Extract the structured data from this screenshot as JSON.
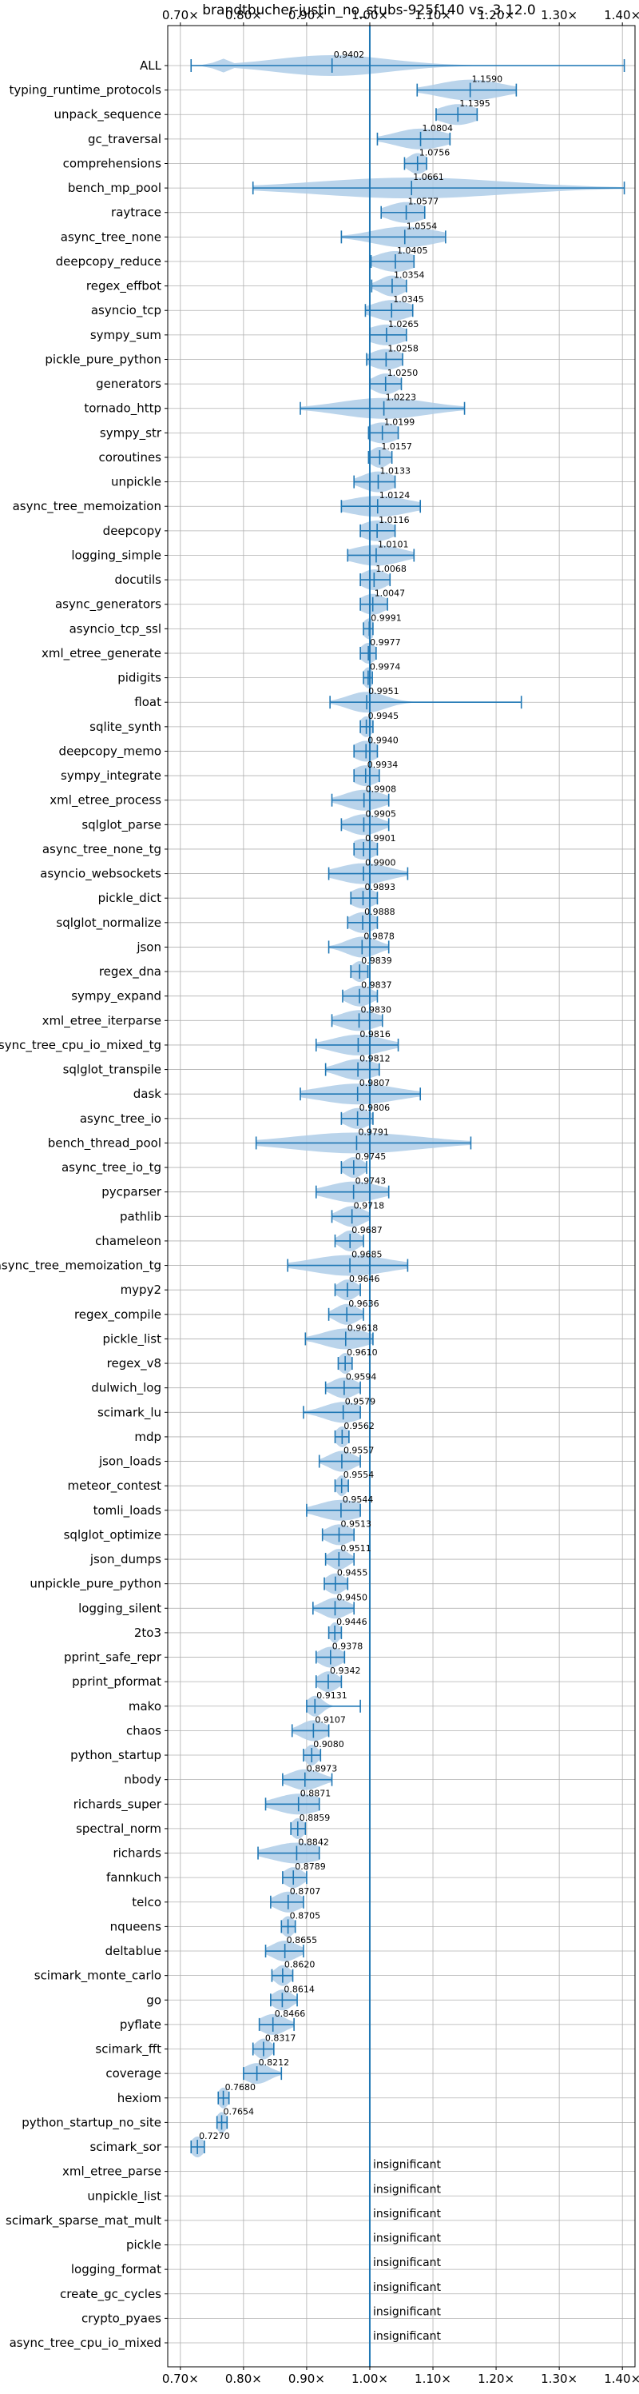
{
  "chart_data": {
    "type": "violin",
    "title": "brandtbucher-justin_no_stubs-925f140 vs. 3.12.0",
    "xlim": [
      0.68,
      1.42
    ],
    "x_ticks": [
      0.7,
      0.8,
      0.9,
      1.0,
      1.1,
      1.2,
      1.3,
      1.4
    ],
    "x_tick_labels": [
      "0.70×",
      "0.80×",
      "0.90×",
      "1.00×",
      "1.10×",
      "1.20×",
      "1.30×",
      "1.40×"
    ],
    "reference_line": 1.0,
    "grid": true,
    "color": "#1f77b4",
    "violin_color": "#aecde8",
    "items": [
      {
        "name": "ALL",
        "label": "0.9402",
        "median": 0.9402,
        "min": 0.717,
        "max": 1.403,
        "spread": 0.09,
        "q": [
          0.9,
          1.03
        ]
      },
      {
        "name": "typing_runtime_protocols",
        "label": "1.1590",
        "median": 1.159,
        "min": 1.075,
        "max": 1.232,
        "spread": 0.05
      },
      {
        "name": "unpack_sequence",
        "label": "1.1395",
        "median": 1.1395,
        "min": 1.105,
        "max": 1.17,
        "spread": 0.03
      },
      {
        "name": "gc_traversal",
        "label": "1.0804",
        "median": 1.0804,
        "min": 1.012,
        "max": 1.127,
        "spread": 0.04
      },
      {
        "name": "comprehensions",
        "label": "1.0756",
        "median": 1.0756,
        "min": 1.055,
        "max": 1.09,
        "spread": 0.015
      },
      {
        "name": "bench_mp_pool",
        "label": "1.0661",
        "median": 1.0661,
        "min": 0.815,
        "max": 1.403,
        "spread": 0.15
      },
      {
        "name": "raytrace",
        "label": "1.0577",
        "median": 1.0577,
        "min": 1.018,
        "max": 1.087,
        "spread": 0.03
      },
      {
        "name": "async_tree_none",
        "label": "1.0554",
        "median": 1.0554,
        "min": 0.955,
        "max": 1.12,
        "spread": 0.05
      },
      {
        "name": "deepcopy_reduce",
        "label": "1.0405",
        "median": 1.0405,
        "min": 1.002,
        "max": 1.07,
        "spread": 0.03
      },
      {
        "name": "regex_effbot",
        "label": "1.0354",
        "median": 1.0354,
        "min": 1.003,
        "max": 1.058,
        "spread": 0.02
      },
      {
        "name": "asyncio_tcp",
        "label": "1.0345",
        "median": 1.0345,
        "min": 0.993,
        "max": 1.068,
        "spread": 0.03
      },
      {
        "name": "sympy_sum",
        "label": "1.0265",
        "median": 1.0265,
        "min": 1.0,
        "max": 1.058,
        "spread": 0.03
      },
      {
        "name": "pickle_pure_python",
        "label": "1.0258",
        "median": 1.0258,
        "min": 0.995,
        "max": 1.052,
        "spread": 0.025
      },
      {
        "name": "generators",
        "label": "1.0250",
        "median": 1.025,
        "min": 1.0,
        "max": 1.05,
        "spread": 0.02
      },
      {
        "name": "tornado_http",
        "label": "1.0223",
        "median": 1.0223,
        "min": 0.89,
        "max": 1.15,
        "spread": 0.07
      },
      {
        "name": "sympy_str",
        "label": "1.0199",
        "median": 1.0199,
        "min": 0.998,
        "max": 1.045,
        "spread": 0.025
      },
      {
        "name": "coroutines",
        "label": "1.0157",
        "median": 1.0157,
        "min": 0.998,
        "max": 1.035,
        "spread": 0.015
      },
      {
        "name": "unpickle",
        "label": "1.0133",
        "median": 1.0133,
        "min": 0.975,
        "max": 1.04,
        "spread": 0.025
      },
      {
        "name": "async_tree_memoization",
        "label": "1.0124",
        "median": 1.0124,
        "min": 0.955,
        "max": 1.08,
        "spread": 0.05
      },
      {
        "name": "deepcopy",
        "label": "1.0116",
        "median": 1.0116,
        "min": 0.985,
        "max": 1.04,
        "spread": 0.025
      },
      {
        "name": "logging_simple",
        "label": "1.0101",
        "median": 1.0101,
        "min": 0.965,
        "max": 1.07,
        "spread": 0.04
      },
      {
        "name": "docutils",
        "label": "1.0068",
        "median": 1.0068,
        "min": 0.985,
        "max": 1.032,
        "spread": 0.02
      },
      {
        "name": "async_generators",
        "label": "1.0047",
        "median": 1.0047,
        "min": 0.985,
        "max": 1.028,
        "spread": 0.02
      },
      {
        "name": "asyncio_tcp_ssl",
        "label": "0.9991",
        "median": 0.9991,
        "min": 0.99,
        "max": 1.005,
        "spread": 0.01
      },
      {
        "name": "xml_etree_generate",
        "label": "0.9977",
        "median": 0.9977,
        "min": 0.985,
        "max": 1.01,
        "spread": 0.012
      },
      {
        "name": "pidigits",
        "label": "0.9974",
        "median": 0.9974,
        "min": 0.99,
        "max": 1.004,
        "spread": 0.008
      },
      {
        "name": "float",
        "label": "0.9951",
        "median": 0.9951,
        "min": 0.937,
        "max": 1.24,
        "spread": 0.03
      },
      {
        "name": "sqlite_synth",
        "label": "0.9945",
        "median": 0.9945,
        "min": 0.985,
        "max": 1.005,
        "spread": 0.01
      },
      {
        "name": "deepcopy_memo",
        "label": "0.9940",
        "median": 0.994,
        "min": 0.975,
        "max": 1.012,
        "spread": 0.02
      },
      {
        "name": "sympy_integrate",
        "label": "0.9934",
        "median": 0.9934,
        "min": 0.975,
        "max": 1.015,
        "spread": 0.02
      },
      {
        "name": "xml_etree_process",
        "label": "0.9908",
        "median": 0.9908,
        "min": 0.94,
        "max": 1.03,
        "spread": 0.03
      },
      {
        "name": "sqlglot_parse",
        "label": "0.9905",
        "median": 0.9905,
        "min": 0.955,
        "max": 1.03,
        "spread": 0.025
      },
      {
        "name": "async_tree_none_tg",
        "label": "0.9901",
        "median": 0.9901,
        "min": 0.975,
        "max": 1.012,
        "spread": 0.02
      },
      {
        "name": "asyncio_websockets",
        "label": "0.9900",
        "median": 0.99,
        "min": 0.935,
        "max": 1.06,
        "spread": 0.04
      },
      {
        "name": "pickle_dict",
        "label": "0.9893",
        "median": 0.9893,
        "min": 0.97,
        "max": 1.012,
        "spread": 0.02
      },
      {
        "name": "sqlglot_normalize",
        "label": "0.9888",
        "median": 0.9888,
        "min": 0.965,
        "max": 1.012,
        "spread": 0.02
      },
      {
        "name": "json",
        "label": "0.9878",
        "median": 0.9878,
        "min": 0.935,
        "max": 1.03,
        "spread": 0.025
      },
      {
        "name": "regex_dna",
        "label": "0.9839",
        "median": 0.9839,
        "min": 0.97,
        "max": 0.997,
        "spread": 0.012
      },
      {
        "name": "sympy_expand",
        "label": "0.9837",
        "median": 0.9837,
        "min": 0.957,
        "max": 1.012,
        "spread": 0.02
      },
      {
        "name": "xml_etree_iterparse",
        "label": "0.9830",
        "median": 0.983,
        "min": 0.94,
        "max": 1.02,
        "spread": 0.03
      },
      {
        "name": "async_tree_cpu_io_mixed_tg",
        "label": "0.9816",
        "median": 0.9816,
        "min": 0.915,
        "max": 1.045,
        "spread": 0.04
      },
      {
        "name": "sqlglot_transpile",
        "label": "0.9812",
        "median": 0.9812,
        "min": 0.93,
        "max": 1.015,
        "spread": 0.03
      },
      {
        "name": "dask",
        "label": "0.9807",
        "median": 0.9807,
        "min": 0.89,
        "max": 1.08,
        "spread": 0.06
      },
      {
        "name": "async_tree_io",
        "label": "0.9806",
        "median": 0.9806,
        "min": 0.955,
        "max": 1.005,
        "spread": 0.02
      },
      {
        "name": "bench_thread_pool",
        "label": "0.9791",
        "median": 0.9791,
        "min": 0.82,
        "max": 1.16,
        "spread": 0.1
      },
      {
        "name": "async_tree_io_tg",
        "label": "0.9745",
        "median": 0.9745,
        "min": 0.955,
        "max": 0.995,
        "spread": 0.015
      },
      {
        "name": "pycparser",
        "label": "0.9743",
        "median": 0.9743,
        "min": 0.915,
        "max": 1.03,
        "spread": 0.04
      },
      {
        "name": "pathlib",
        "label": "0.9718",
        "median": 0.9718,
        "min": 0.94,
        "max": 1.0,
        "spread": 0.02
      },
      {
        "name": "chameleon",
        "label": "0.9687",
        "median": 0.9687,
        "min": 0.945,
        "max": 0.99,
        "spread": 0.015
      },
      {
        "name": "async_tree_memoization_tg",
        "label": "0.9685",
        "median": 0.9685,
        "min": 0.87,
        "max": 1.06,
        "spread": 0.06
      },
      {
        "name": "mypy2",
        "label": "0.9646",
        "median": 0.9646,
        "min": 0.945,
        "max": 0.985,
        "spread": 0.015
      },
      {
        "name": "regex_compile",
        "label": "0.9636",
        "median": 0.9636,
        "min": 0.935,
        "max": 0.99,
        "spread": 0.018
      },
      {
        "name": "pickle_list",
        "label": "0.9618",
        "median": 0.9618,
        "min": 0.898,
        "max": 1.005,
        "spread": 0.035
      },
      {
        "name": "regex_v8",
        "label": "0.9610",
        "median": 0.961,
        "min": 0.95,
        "max": 0.972,
        "spread": 0.01
      },
      {
        "name": "dulwich_log",
        "label": "0.9594",
        "median": 0.9594,
        "min": 0.93,
        "max": 0.985,
        "spread": 0.02
      },
      {
        "name": "scimark_lu",
        "label": "0.9579",
        "median": 0.9579,
        "min": 0.895,
        "max": 0.985,
        "spread": 0.03
      },
      {
        "name": "mdp",
        "label": "0.9562",
        "median": 0.9562,
        "min": 0.945,
        "max": 0.967,
        "spread": 0.01
      },
      {
        "name": "json_loads",
        "label": "0.9557",
        "median": 0.9557,
        "min": 0.92,
        "max": 0.985,
        "spread": 0.02
      },
      {
        "name": "meteor_contest",
        "label": "0.9554",
        "median": 0.9554,
        "min": 0.945,
        "max": 0.966,
        "spread": 0.008
      },
      {
        "name": "tomli_loads",
        "label": "0.9544",
        "median": 0.9544,
        "min": 0.9,
        "max": 0.985,
        "spread": 0.035
      },
      {
        "name": "sqlglot_optimize",
        "label": "0.9513",
        "median": 0.9513,
        "min": 0.925,
        "max": 0.975,
        "spread": 0.02
      },
      {
        "name": "json_dumps",
        "label": "0.9511",
        "median": 0.9511,
        "min": 0.93,
        "max": 0.975,
        "spread": 0.015
      },
      {
        "name": "unpickle_pure_python",
        "label": "0.9455",
        "median": 0.9455,
        "min": 0.928,
        "max": 0.965,
        "spread": 0.015
      },
      {
        "name": "logging_silent",
        "label": "0.9450",
        "median": 0.945,
        "min": 0.91,
        "max": 0.975,
        "spread": 0.02
      },
      {
        "name": "2to3",
        "label": "0.9446",
        "median": 0.9446,
        "min": 0.935,
        "max": 0.955,
        "spread": 0.008
      },
      {
        "name": "pprint_safe_repr",
        "label": "0.9378",
        "median": 0.9378,
        "min": 0.915,
        "max": 0.96,
        "spread": 0.018
      },
      {
        "name": "pprint_pformat",
        "label": "0.9342",
        "median": 0.9342,
        "min": 0.915,
        "max": 0.955,
        "spread": 0.015
      },
      {
        "name": "mako",
        "label": "0.9131",
        "median": 0.9131,
        "min": 0.9,
        "max": 0.985,
        "spread": 0.012
      },
      {
        "name": "chaos",
        "label": "0.9107",
        "median": 0.9107,
        "min": 0.877,
        "max": 0.935,
        "spread": 0.02
      },
      {
        "name": "python_startup",
        "label": "0.9080",
        "median": 0.908,
        "min": 0.895,
        "max": 0.922,
        "spread": 0.01
      },
      {
        "name": "nbody",
        "label": "0.8973",
        "median": 0.8973,
        "min": 0.862,
        "max": 0.94,
        "spread": 0.025
      },
      {
        "name": "richards_super",
        "label": "0.8871",
        "median": 0.8871,
        "min": 0.835,
        "max": 0.92,
        "spread": 0.035
      },
      {
        "name": "spectral_norm",
        "label": "0.8859",
        "median": 0.8859,
        "min": 0.875,
        "max": 0.898,
        "spread": 0.01
      },
      {
        "name": "richards",
        "label": "0.8842",
        "median": 0.8842,
        "min": 0.823,
        "max": 0.92,
        "spread": 0.04
      },
      {
        "name": "fannkuch",
        "label": "0.8789",
        "median": 0.8789,
        "min": 0.862,
        "max": 0.9,
        "spread": 0.015
      },
      {
        "name": "telco",
        "label": "0.8707",
        "median": 0.8707,
        "min": 0.843,
        "max": 0.895,
        "spread": 0.02
      },
      {
        "name": "nqueens",
        "label": "0.8705",
        "median": 0.8705,
        "min": 0.86,
        "max": 0.882,
        "spread": 0.01
      },
      {
        "name": "deltablue",
        "label": "0.8655",
        "median": 0.8655,
        "min": 0.835,
        "max": 0.895,
        "spread": 0.02
      },
      {
        "name": "scimark_monte_carlo",
        "label": "0.8620",
        "median": 0.862,
        "min": 0.845,
        "max": 0.878,
        "spread": 0.012
      },
      {
        "name": "go",
        "label": "0.8614",
        "median": 0.8614,
        "min": 0.843,
        "max": 0.885,
        "spread": 0.015
      },
      {
        "name": "pyflate",
        "label": "0.8466",
        "median": 0.8466,
        "min": 0.825,
        "max": 0.88,
        "spread": 0.02
      },
      {
        "name": "scimark_fft",
        "label": "0.8317",
        "median": 0.8317,
        "min": 0.815,
        "max": 0.848,
        "spread": 0.012
      },
      {
        "name": "coverage",
        "label": "0.8212",
        "median": 0.8212,
        "min": 0.8,
        "max": 0.86,
        "spread": 0.02
      },
      {
        "name": "hexiom",
        "label": "0.7680",
        "median": 0.768,
        "min": 0.76,
        "max": 0.777,
        "spread": 0.008
      },
      {
        "name": "python_startup_no_site",
        "label": "0.7654",
        "median": 0.7654,
        "min": 0.758,
        "max": 0.774,
        "spread": 0.008
      },
      {
        "name": "scimark_sor",
        "label": "0.7270",
        "median": 0.727,
        "min": 0.717,
        "max": 0.738,
        "spread": 0.01
      },
      {
        "name": "xml_etree_parse",
        "label": "insignificant",
        "insignificant": true
      },
      {
        "name": "unpickle_list",
        "label": "insignificant",
        "insignificant": true
      },
      {
        "name": "scimark_sparse_mat_mult",
        "label": "insignificant",
        "insignificant": true
      },
      {
        "name": "pickle",
        "label": "insignificant",
        "insignificant": true
      },
      {
        "name": "logging_format",
        "label": "insignificant",
        "insignificant": true
      },
      {
        "name": "create_gc_cycles",
        "label": "insignificant",
        "insignificant": true
      },
      {
        "name": "crypto_pyaes",
        "label": "insignificant",
        "insignificant": true
      },
      {
        "name": "async_tree_cpu_io_mixed",
        "label": "insignificant",
        "insignificant": true
      }
    ]
  }
}
